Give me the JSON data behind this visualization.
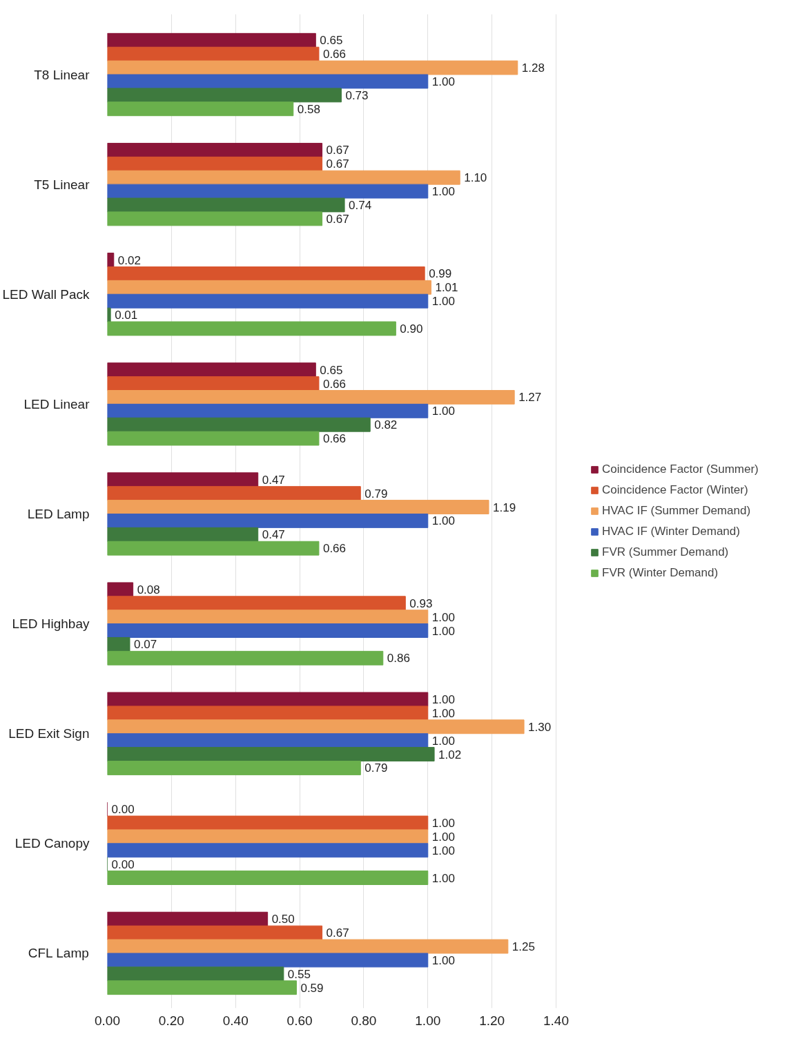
{
  "chart_data": {
    "type": "bar",
    "orientation": "horizontal",
    "categories": [
      "T8 Linear",
      "T5 Linear",
      "LED Wall Pack",
      "LED Linear",
      "LED Lamp",
      "LED Highbay",
      "LED Exit Sign",
      "LED Canopy",
      "CFL Lamp"
    ],
    "series": [
      {
        "name": "Coincidence Factor (Summer)",
        "color": "#8b1538",
        "values": [
          0.65,
          0.67,
          0.02,
          0.65,
          0.47,
          0.08,
          1.0,
          0.0,
          0.5
        ],
        "value_labels": [
          "0.65",
          "0.67",
          "0.02",
          "0.65",
          "0.47",
          "0.08",
          "1.00",
          "0.00",
          "0.50"
        ]
      },
      {
        "name": "Coincidence Factor (Winter)",
        "color": "#d9542c",
        "values": [
          0.66,
          0.67,
          0.99,
          0.66,
          0.79,
          0.93,
          1.0,
          1.0,
          0.67
        ],
        "value_labels": [
          "0.66",
          "0.67",
          "0.99",
          "0.66",
          "0.79",
          "0.93",
          "1.00",
          "1.00",
          "0.67"
        ]
      },
      {
        "name": "HVAC IF (Summer Demand)",
        "color": "#f0a05a",
        "values": [
          1.28,
          1.1,
          1.01,
          1.27,
          1.19,
          1.0,
          1.3,
          1.0,
          1.25
        ],
        "value_labels": [
          "1.28",
          "1.10",
          "1.01",
          "1.27",
          "1.19",
          "1.00",
          "1.30",
          "1.00",
          "1.25"
        ]
      },
      {
        "name": "HVAC IF (Winter Demand)",
        "color": "#3a5fbf",
        "values": [
          1.0,
          1.0,
          1.0,
          1.0,
          1.0,
          1.0,
          1.0,
          1.0,
          1.0
        ],
        "value_labels": [
          "1.00",
          "1.00",
          "1.00",
          "1.00",
          "1.00",
          "1.00",
          "1.00",
          "1.00",
          "1.00"
        ]
      },
      {
        "name": "FVR (Summer Demand)",
        "color": "#3e7a3e",
        "values": [
          0.73,
          0.74,
          0.01,
          0.82,
          0.47,
          0.07,
          1.02,
          0.0,
          0.55
        ],
        "value_labels": [
          "0.73",
          "0.74",
          "0.01",
          "0.82",
          "0.47",
          "0.07",
          "1.02",
          "0.00",
          "0.55"
        ]
      },
      {
        "name": "FVR (Winter Demand)",
        "color": "#6ab04c",
        "values": [
          0.58,
          0.67,
          0.9,
          0.66,
          0.66,
          0.86,
          0.79,
          1.0,
          0.59
        ],
        "value_labels": [
          "0.58",
          "0.67",
          "0.90",
          "0.66",
          "0.66",
          "0.86",
          "0.79",
          "1.00",
          "0.59"
        ]
      }
    ],
    "xlim": [
      0,
      1.4
    ],
    "xticks": [
      {
        "value": 0,
        "label": "0.00"
      },
      {
        "value": 0.2,
        "label": "0.20"
      },
      {
        "value": 0.4,
        "label": "0.40"
      },
      {
        "value": 0.6,
        "label": "0.60"
      },
      {
        "value": 0.8,
        "label": "0.80"
      },
      {
        "value": 1.0,
        "label": "1.00"
      },
      {
        "value": 1.2,
        "label": "1.20"
      },
      {
        "value": 1.4,
        "label": "1.40"
      }
    ],
    "grid": "x",
    "legend": "right"
  }
}
